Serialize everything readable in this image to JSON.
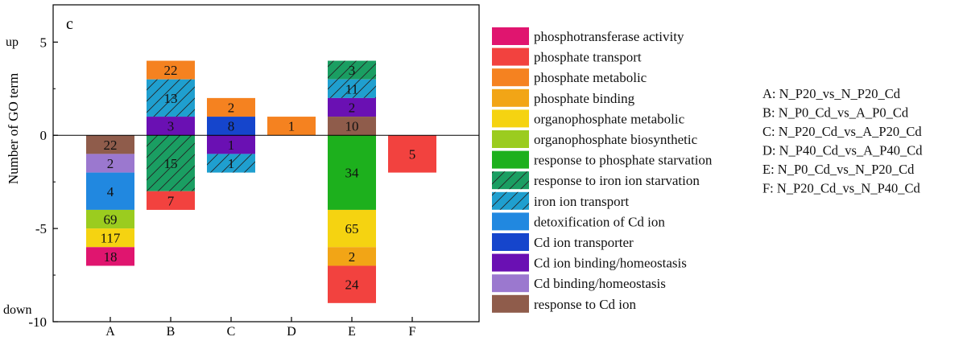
{
  "chart_data": {
    "type": "bar",
    "panel_label": "c",
    "ylabel": "Number of GO term",
    "y_direction_labels": {
      "top": "up",
      "bottom": "down"
    },
    "ylim": [
      -10,
      7
    ],
    "yticks": [
      -10,
      -5,
      0,
      5
    ],
    "categories": [
      "A",
      "B",
      "C",
      "D",
      "E",
      "F"
    ],
    "terms": [
      {
        "name": "phosphotransferase activity",
        "color": "#e0156f",
        "hatch": false
      },
      {
        "name": "phosphate transport",
        "color": "#f2423f",
        "hatch": false
      },
      {
        "name": "phosphate metabolic",
        "color": "#f58220",
        "hatch": false
      },
      {
        "name": "phosphate binding",
        "color": "#f2a516",
        "hatch": false
      },
      {
        "name": "organophosphate metabolic",
        "color": "#f5d311",
        "hatch": false
      },
      {
        "name": "organophosphate biosynthetic",
        "color": "#9bcc1f",
        "hatch": false
      },
      {
        "name": "response to phosphate starvation",
        "color": "#1db01d",
        "hatch": false
      },
      {
        "name": "response to iron ion starvation",
        "color": "#1a9e62",
        "hatch": true
      },
      {
        "name": "iron ion transport",
        "color": "#1f9fcf",
        "hatch": true
      },
      {
        "name": "detoxification of Cd ion",
        "color": "#2188e0",
        "hatch": false
      },
      {
        "name": "Cd ion transporter",
        "color": "#1545cc",
        "hatch": false
      },
      {
        "name": "Cd ion  binding/homeostasis",
        "color": "#6a10b3",
        "hatch": false
      },
      {
        "name": "Cd binding/homeostasis",
        "color": "#9b78cf",
        "hatch": false
      },
      {
        "name": "response to Cd ion",
        "color": "#8f5c4b",
        "hatch": false
      }
    ],
    "segments": [
      {
        "category": "A",
        "term": 13,
        "from": 0,
        "to": -1,
        "label": "22"
      },
      {
        "category": "A",
        "term": 12,
        "from": -1,
        "to": -2,
        "label": "2"
      },
      {
        "category": "A",
        "term": 9,
        "from": -2,
        "to": -4,
        "label": "4"
      },
      {
        "category": "A",
        "term": 5,
        "from": -4,
        "to": -5,
        "label": "69"
      },
      {
        "category": "A",
        "term": 4,
        "from": -5,
        "to": -6,
        "label": "117"
      },
      {
        "category": "A",
        "term": 0,
        "from": -6,
        "to": -7,
        "label": "18"
      },
      {
        "category": "B",
        "term": 2,
        "from": 3,
        "to": 4,
        "label": "22"
      },
      {
        "category": "B",
        "term": 8,
        "from": 1,
        "to": 3,
        "label": "13"
      },
      {
        "category": "B",
        "term": 11,
        "from": 0,
        "to": 1,
        "label": "3"
      },
      {
        "category": "B",
        "term": 7,
        "from": 0,
        "to": -3,
        "label": "15"
      },
      {
        "category": "B",
        "term": 1,
        "from": -3,
        "to": -4,
        "label": "7"
      },
      {
        "category": "C",
        "term": 2,
        "from": 1,
        "to": 2,
        "label": "2"
      },
      {
        "category": "C",
        "term": 10,
        "from": 0,
        "to": 1,
        "label": "8"
      },
      {
        "category": "C",
        "term": 11,
        "from": 0,
        "to": -1,
        "label": "1"
      },
      {
        "category": "C",
        "term": 8,
        "from": -1,
        "to": -2,
        "label": "1"
      },
      {
        "category": "D",
        "term": 2,
        "from": 0,
        "to": 1,
        "label": "1"
      },
      {
        "category": "E",
        "term": 7,
        "from": 3,
        "to": 4,
        "label": "3"
      },
      {
        "category": "E",
        "term": 8,
        "from": 2,
        "to": 3,
        "label": "11"
      },
      {
        "category": "E",
        "term": 11,
        "from": 1,
        "to": 2,
        "label": "2"
      },
      {
        "category": "E",
        "term": 13,
        "from": 0,
        "to": 1,
        "label": "10"
      },
      {
        "category": "E",
        "term": 6,
        "from": 0,
        "to": -4,
        "label": "34"
      },
      {
        "category": "E",
        "term": 4,
        "from": -4,
        "to": -6,
        "label": "65"
      },
      {
        "category": "E",
        "term": 3,
        "from": -6,
        "to": -7,
        "label": "2"
      },
      {
        "category": "E",
        "term": 1,
        "from": -7,
        "to": -9,
        "label": "24"
      },
      {
        "category": "F",
        "term": 1,
        "from": 0,
        "to": -2,
        "label": "5"
      }
    ],
    "comparisons": [
      "A: N_P20_vs_N_P20_Cd",
      "B: N_P0_Cd_vs_A_P0_Cd",
      "C: N_P20_Cd_vs_A_P20_Cd",
      "D: N_P40_Cd_vs_A_P40_Cd",
      "E: N_P0_Cd_vs_N_P20_Cd",
      "F: N_P20_Cd_vs_N_P40_Cd"
    ],
    "legend_placement": "right",
    "grid": false
  }
}
